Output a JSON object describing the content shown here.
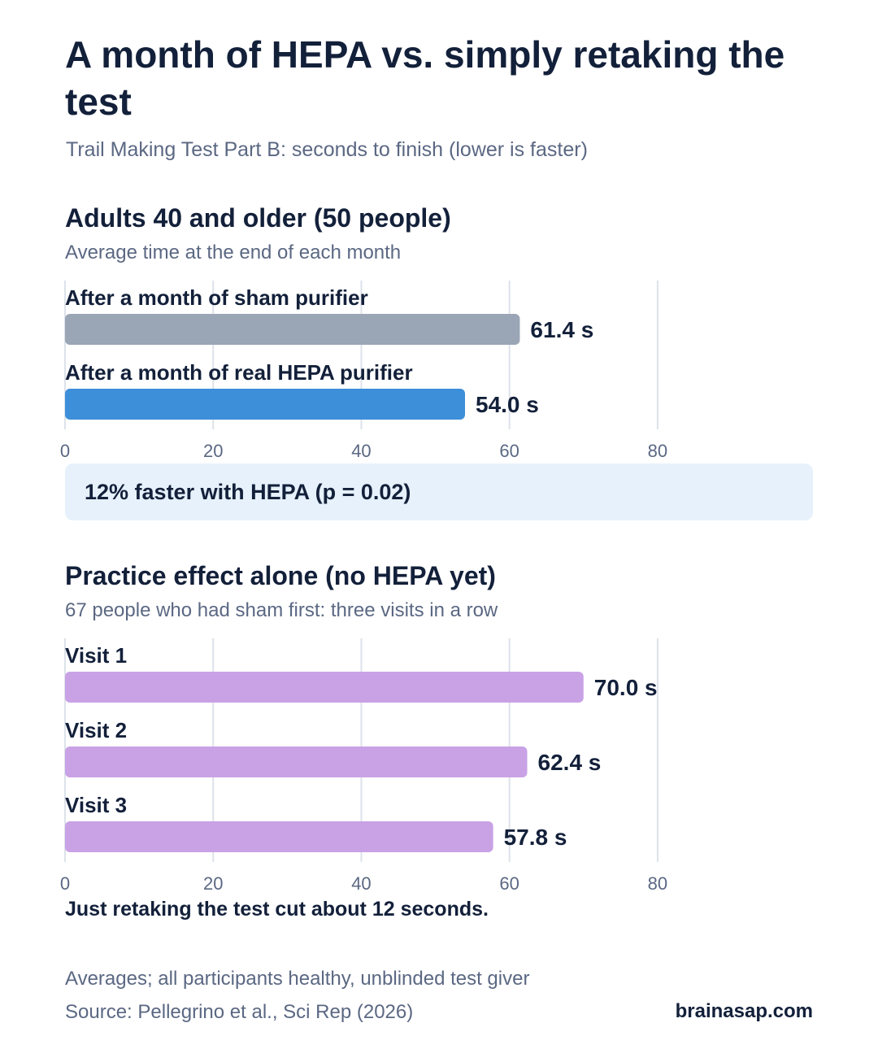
{
  "title": "A month of HEPA vs. simply retaking the test",
  "subtitle": "Trail Making Test Part B: seconds to finish (lower is faster)",
  "callout": "12% faster with HEPA (p = 0.02)",
  "note": "Just retaking the test cut about 12 seconds.",
  "footnote": "Averages; all participants healthy, unblinded test giver",
  "source": "Source: Pellegrino et al., Sci Rep (2026)",
  "brand": "brainasap.com",
  "chart_data": [
    {
      "type": "bar",
      "orientation": "horizontal",
      "title": "Adults 40 and older (50 people)",
      "subtitle": "Average time at the end of each month",
      "categories": [
        "After a month of sham purifier",
        "After a month of real HEPA purifier"
      ],
      "values": [
        61.4,
        54.0
      ],
      "value_labels": [
        "61.4 s",
        "54.0 s"
      ],
      "colors": [
        "#9aa5b6",
        "#3d8fd9"
      ],
      "xlim": [
        0,
        90
      ],
      "xticks": [
        0,
        20,
        40,
        60,
        80
      ],
      "grid": true
    },
    {
      "type": "bar",
      "orientation": "horizontal",
      "title": "Practice effect alone (no HEPA yet)",
      "subtitle": "67 people who had sham first: three visits in a row",
      "categories": [
        "Visit 1",
        "Visit 2",
        "Visit 3"
      ],
      "values": [
        70.0,
        62.4,
        57.8
      ],
      "value_labels": [
        "70.0 s",
        "62.4 s",
        "57.8 s"
      ],
      "colors": [
        "#c9a2e6",
        "#c9a2e6",
        "#c9a2e6"
      ],
      "xlim": [
        0,
        90
      ],
      "xticks": [
        0,
        20,
        40,
        60,
        80
      ],
      "grid": true
    }
  ]
}
